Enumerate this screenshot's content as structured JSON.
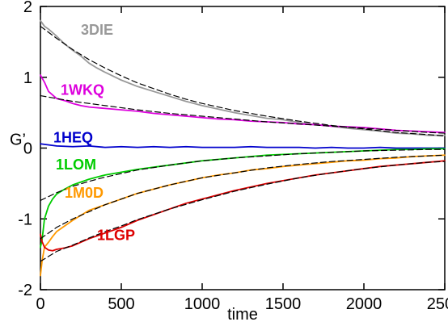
{
  "chart_data": {
    "type": "line",
    "title": "",
    "xlabel": "time",
    "ylabel": "G’",
    "xlim": [
      0,
      2500
    ],
    "ylim": [
      -2,
      2
    ],
    "x_ticks": [
      0,
      500,
      1000,
      1500,
      2000,
      2500
    ],
    "y_ticks": [
      -2,
      -1,
      0,
      1,
      2
    ],
    "x_tick_labels": [
      "0",
      "500",
      "1000",
      "1500",
      "2000",
      "2500"
    ],
    "y_tick_labels": [
      "-2",
      "-1",
      "0",
      "1",
      "2"
    ],
    "grid": false,
    "legend": "none; series labels placed inline near curves",
    "series": [
      {
        "name": "3DIE",
        "color": "#999999",
        "x": [
          0,
          25,
          50,
          100,
          150,
          200,
          250,
          300,
          350,
          400,
          500,
          600,
          700,
          800,
          900,
          1000,
          1100,
          1200,
          1300,
          1400,
          1500,
          1600,
          1700,
          1800,
          1900,
          2000,
          2100,
          2200,
          2300,
          2400,
          2500
        ],
        "y": [
          1.8,
          1.72,
          1.68,
          1.58,
          1.47,
          1.38,
          1.3,
          1.2,
          1.13,
          1.07,
          0.96,
          0.87,
          0.8,
          0.73,
          0.66,
          0.6,
          0.55,
          0.5,
          0.46,
          0.42,
          0.4,
          0.36,
          0.33,
          0.31,
          0.28,
          0.26,
          0.24,
          0.21,
          0.2,
          0.18,
          0.18
        ]
      },
      {
        "name": "1WKQ",
        "color": "#dd00dd",
        "x": [
          0,
          25,
          50,
          100,
          150,
          200,
          250,
          300,
          400,
          500,
          600,
          700,
          800,
          900,
          1000,
          1100,
          1200,
          1300,
          1400,
          1500,
          1600,
          1700,
          1800,
          1900,
          2000,
          2100,
          2200,
          2300,
          2400,
          2500
        ],
        "y": [
          1.03,
          0.93,
          0.8,
          0.7,
          0.67,
          0.63,
          0.6,
          0.58,
          0.56,
          0.54,
          0.52,
          0.49,
          0.47,
          0.45,
          0.43,
          0.41,
          0.4,
          0.38,
          0.37,
          0.36,
          0.34,
          0.33,
          0.31,
          0.3,
          0.29,
          0.27,
          0.25,
          0.24,
          0.23,
          0.22
        ]
      },
      {
        "name": "1HEQ",
        "color": "#0000cc",
        "x": [
          0,
          100,
          200,
          300,
          400,
          500,
          600,
          700,
          800,
          900,
          1000,
          1100,
          1200,
          1300,
          1400,
          1500,
          1600,
          1700,
          1800,
          1900,
          2000,
          2100,
          2200,
          2300,
          2400,
          2500
        ],
        "y": [
          0.06,
          0.03,
          0.02,
          0.03,
          0.01,
          0.02,
          0.01,
          0.02,
          0.01,
          0.02,
          0.01,
          0.01,
          0.01,
          0.02,
          0.01,
          0.01,
          0.01,
          0.0,
          0.01,
          0.0,
          0.0,
          0.01,
          0.0,
          0.0,
          0.0,
          0.0
        ]
      },
      {
        "name": "1LOM",
        "color": "#00cc00",
        "x": [
          0,
          10,
          25,
          50,
          75,
          100,
          150,
          200,
          250,
          300,
          400,
          500,
          600,
          700,
          800,
          900,
          1000,
          1100,
          1200,
          1300,
          1400,
          1500,
          1600,
          1700,
          1800,
          1900,
          2000,
          2100,
          2200,
          2300,
          2400,
          2500
        ],
        "y": [
          -1.4,
          -1.3,
          -1.0,
          -0.82,
          -0.72,
          -0.65,
          -0.58,
          -0.52,
          -0.48,
          -0.44,
          -0.38,
          -0.34,
          -0.3,
          -0.27,
          -0.24,
          -0.21,
          -0.18,
          -0.16,
          -0.14,
          -0.12,
          -0.1,
          -0.09,
          -0.08,
          -0.07,
          -0.06,
          -0.05,
          -0.04,
          -0.03,
          -0.02,
          -0.02,
          -0.01,
          -0.01
        ]
      },
      {
        "name": "1M0D",
        "color": "#ff9900",
        "x": [
          0,
          10,
          25,
          50,
          75,
          100,
          150,
          200,
          250,
          300,
          400,
          500,
          600,
          700,
          800,
          900,
          1000,
          1100,
          1200,
          1300,
          1400,
          1500,
          1600,
          1700,
          1800,
          1900,
          2000,
          2100,
          2200,
          2300,
          2400,
          2500
        ],
        "y": [
          -1.8,
          -1.6,
          -1.4,
          -1.33,
          -1.25,
          -1.18,
          -1.1,
          -1.02,
          -0.95,
          -0.88,
          -0.8,
          -0.72,
          -0.64,
          -0.58,
          -0.52,
          -0.47,
          -0.42,
          -0.38,
          -0.35,
          -0.31,
          -0.29,
          -0.26,
          -0.24,
          -0.22,
          -0.2,
          -0.18,
          -0.17,
          -0.15,
          -0.14,
          -0.12,
          -0.11,
          -0.1
        ]
      },
      {
        "name": "1LGP",
        "color": "#dd0000",
        "x": [
          0,
          10,
          25,
          50,
          75,
          100,
          150,
          200,
          250,
          300,
          400,
          500,
          600,
          700,
          800,
          900,
          1000,
          1100,
          1200,
          1300,
          1400,
          1500,
          1600,
          1700,
          1800,
          1900,
          2000,
          2100,
          2200,
          2300,
          2400,
          2500
        ],
        "y": [
          -1.22,
          -1.32,
          -1.4,
          -1.44,
          -1.45,
          -1.43,
          -1.41,
          -1.38,
          -1.33,
          -1.28,
          -1.2,
          -1.12,
          -1.02,
          -0.94,
          -0.86,
          -0.78,
          -0.72,
          -0.66,
          -0.6,
          -0.55,
          -0.5,
          -0.46,
          -0.42,
          -0.38,
          -0.35,
          -0.32,
          -0.29,
          -0.26,
          -0.24,
          -0.22,
          -0.2,
          -0.18
        ]
      }
    ],
    "fit_curves": [
      {
        "for_series": "3DIE",
        "color": "#000000",
        "style": "dashed",
        "x": [
          0,
          100,
          200,
          300,
          400,
          500,
          600,
          700,
          800,
          900,
          1000,
          1200,
          1400,
          1600,
          1800,
          2000,
          2200,
          2400,
          2500
        ],
        "y": [
          1.72,
          1.55,
          1.39,
          1.25,
          1.13,
          1.02,
          0.92,
          0.84,
          0.76,
          0.69,
          0.63,
          0.53,
          0.45,
          0.38,
          0.32,
          0.27,
          0.22,
          0.19,
          0.17
        ]
      },
      {
        "for_series": "1WKQ",
        "color": "#000000",
        "style": "dashed",
        "x": [
          0,
          200,
          400,
          600,
          800,
          1000,
          1200,
          1400,
          1600,
          1800,
          2000,
          2200,
          2400,
          2500
        ],
        "y": [
          0.74,
          0.66,
          0.6,
          0.54,
          0.49,
          0.45,
          0.41,
          0.37,
          0.34,
          0.31,
          0.28,
          0.25,
          0.22,
          0.21
        ]
      },
      {
        "for_series": "1LOM",
        "color": "#000000",
        "style": "dashed",
        "x": [
          0,
          100,
          200,
          300,
          400,
          500,
          600,
          800,
          1000,
          1200,
          1400,
          1600,
          1800,
          2000,
          2200,
          2400,
          2500
        ],
        "y": [
          -0.74,
          -0.63,
          -0.54,
          -0.47,
          -0.41,
          -0.36,
          -0.31,
          -0.24,
          -0.18,
          -0.14,
          -0.11,
          -0.08,
          -0.06,
          -0.04,
          -0.03,
          -0.02,
          -0.02
        ]
      },
      {
        "for_series": "1M0D",
        "color": "#000000",
        "style": "dashed",
        "x": [
          0,
          100,
          200,
          300,
          400,
          500,
          600,
          800,
          1000,
          1200,
          1400,
          1600,
          1800,
          2000,
          2200,
          2400,
          2500
        ],
        "y": [
          -1.28,
          -1.12,
          -1.0,
          -0.9,
          -0.8,
          -0.72,
          -0.64,
          -0.52,
          -0.42,
          -0.35,
          -0.28,
          -0.23,
          -0.19,
          -0.16,
          -0.13,
          -0.11,
          -0.1
        ]
      },
      {
        "for_series": "1LGP",
        "color": "#000000",
        "style": "dashed",
        "x": [
          0,
          100,
          200,
          300,
          400,
          500,
          600,
          800,
          1000,
          1200,
          1400,
          1600,
          1800,
          2000,
          2200,
          2400,
          2500
        ],
        "y": [
          -1.6,
          -1.46,
          -1.37,
          -1.27,
          -1.18,
          -1.1,
          -1.01,
          -0.86,
          -0.73,
          -0.61,
          -0.51,
          -0.42,
          -0.35,
          -0.29,
          -0.24,
          -0.2,
          -0.19
        ]
      }
    ]
  }
}
